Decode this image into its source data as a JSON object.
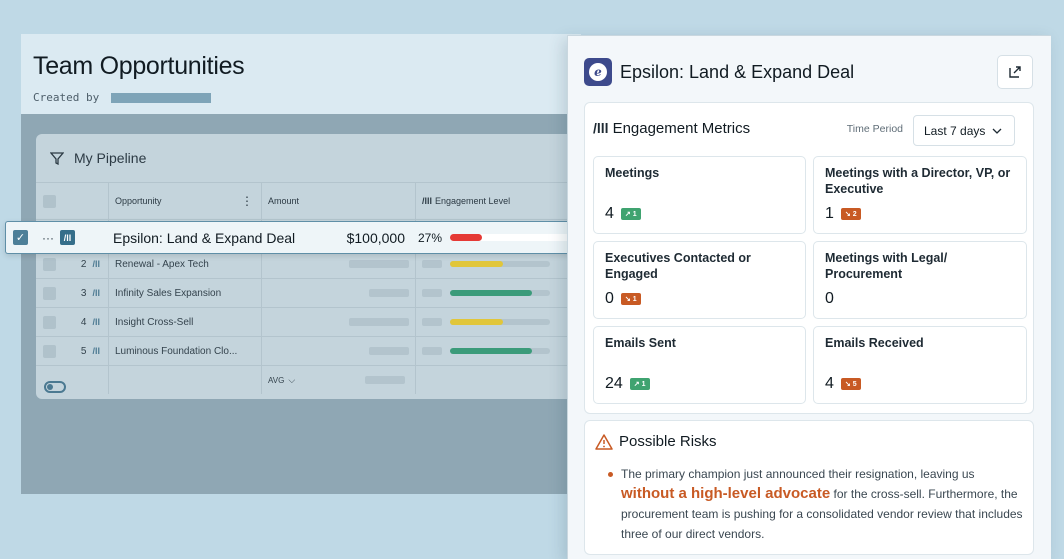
{
  "app": {
    "title": "Team Opportunities",
    "created_by_label": "Created by"
  },
  "pipeline": {
    "title": "My Pipeline",
    "columns": [
      "Opportunity",
      "Amount",
      "Engagement Level"
    ],
    "rows": [
      {
        "num": "2",
        "name": "Renewal - Apex Tech",
        "engagement": 0.53,
        "color": "#e1c63a"
      },
      {
        "num": "3",
        "name": "Infinity Sales Expansion",
        "engagement": 0.82,
        "color": "#3b9b7a"
      },
      {
        "num": "4",
        "name": "Insight Cross-Sell",
        "engagement": 0.53,
        "color": "#e1c63a"
      },
      {
        "num": "5",
        "name": "Luminous Foundation Clo...",
        "engagement": 0.82,
        "color": "#3b9b7a"
      }
    ],
    "avg_label": "AVG"
  },
  "selected": {
    "name": "Epsilon: Land & Expand Deal",
    "amount": "$100,000",
    "pct": "27%",
    "engagement": 0.27
  },
  "panel": {
    "title": "Epsilon: Land & Expand Deal",
    "metrics_title": "Engagement Metrics",
    "time_period_label": "Time Period",
    "time_period_value": "Last 7 days",
    "cards": [
      {
        "label": "Meetings",
        "value": "4",
        "delta": "↗ 1",
        "dir": "up"
      },
      {
        "label": "Meetings with a Director, VP, or Executive",
        "value": "1",
        "delta": "↘ 2",
        "dir": "down"
      },
      {
        "label": "Executives Contacted or Engaged",
        "value": "0",
        "delta": "↘ 1",
        "dir": "down"
      },
      {
        "label": "Meetings with Legal/ Procurement",
        "value": "0",
        "delta": "",
        "dir": ""
      },
      {
        "label": "Emails Sent",
        "value": "24",
        "delta": "↗ 1",
        "dir": "up"
      },
      {
        "label": "Emails Received",
        "value": "4",
        "delta": "↘ 5",
        "dir": "down"
      }
    ],
    "risks_title": "Possible Risks",
    "risk_text_1": "The primary champion just announced their resignation, leaving us",
    "risk_highlight": "without a high-level advocate",
    "risk_text_2": "for the cross-sell. Furthermore, the procurement team is pushing for a consolidated vendor review that includes three of our direct vendors."
  }
}
